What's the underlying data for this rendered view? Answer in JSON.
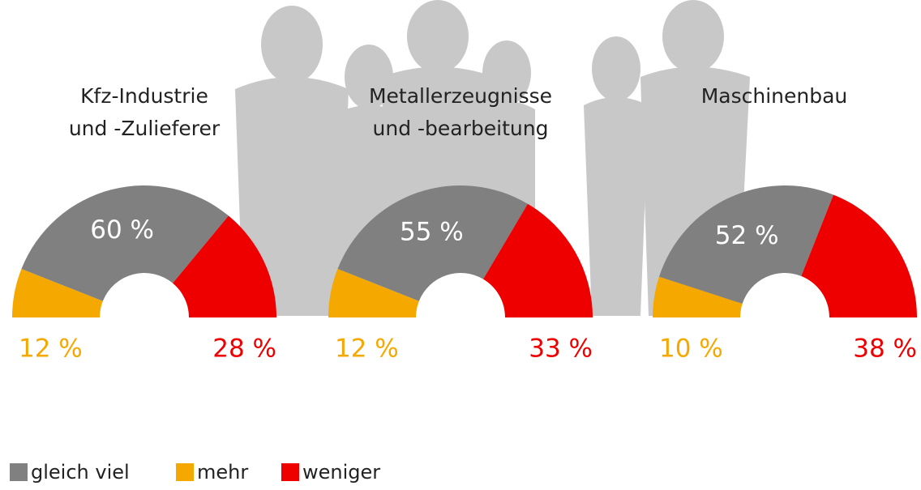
{
  "chart_data": {
    "type": "pie",
    "categories": [
      "gleich viel",
      "mehr",
      "weniger"
    ],
    "colors": [
      "#808080",
      "#f5a800",
      "#ee0000"
    ],
    "series": [
      {
        "name": [
          "Kfz-Industrie",
          "und -Zulieferer"
        ],
        "values": [
          60,
          12,
          28
        ],
        "value_labels": [
          "60 %",
          "12 %",
          "28 %"
        ]
      },
      {
        "name": [
          "Metallerzeugnisse",
          "und -bearbeitung"
        ],
        "values": [
          55,
          12,
          33
        ],
        "value_labels": [
          "55 %",
          "12 %",
          "33 %"
        ]
      },
      {
        "name": [
          "Maschinenbau"
        ],
        "values": [
          52,
          10,
          38
        ],
        "value_labels": [
          "52 %",
          "10 %",
          "38 %"
        ]
      }
    ]
  }
}
